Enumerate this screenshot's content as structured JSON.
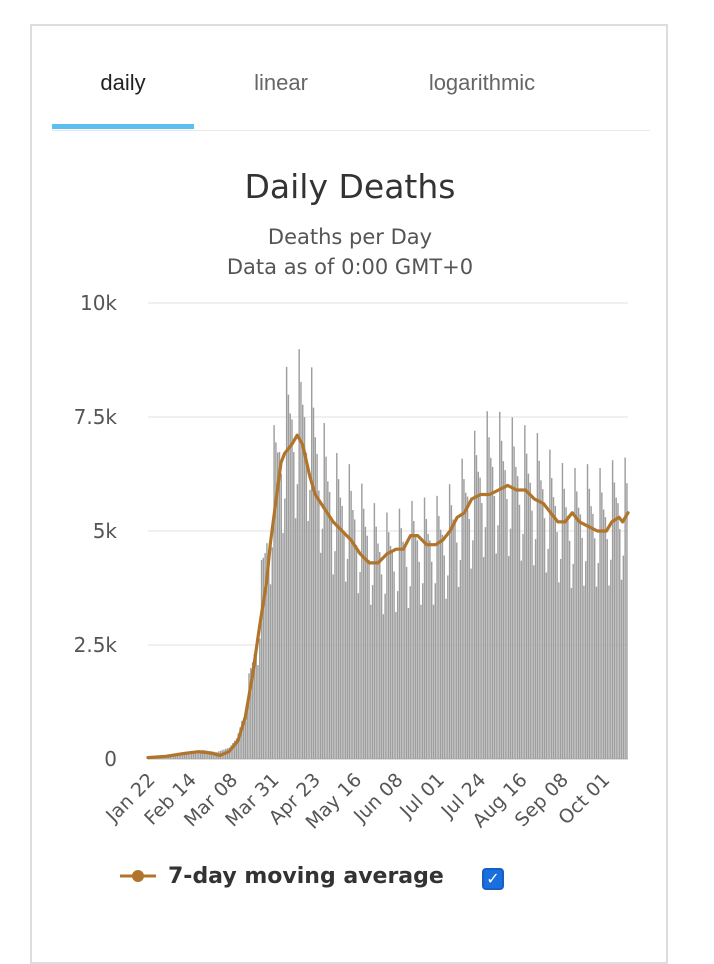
{
  "tabs": [
    {
      "label": "daily",
      "active": true
    },
    {
      "label": "linear",
      "active": false
    },
    {
      "label": "logarithmic",
      "active": false
    }
  ],
  "legend": {
    "label": "7-day moving average",
    "checked": true,
    "check_glyph": "✓"
  },
  "colors": {
    "bars": "#9e9e9e",
    "line": "#b0742a",
    "tab_accent": "#5bc0f0",
    "checkbox": "#1a6fe0"
  },
  "chart_data": {
    "type": "bar",
    "title": "Daily Deaths",
    "subtitle": "Deaths per Day",
    "subtitle2": "Data as of 0:00 GMT+0",
    "xlabel": "",
    "ylabel": "",
    "ylim": [
      0,
      10000
    ],
    "yticks": [
      0,
      2500,
      5000,
      7500,
      10000
    ],
    "ytick_labels": [
      "0",
      "2.5k",
      "5k",
      "7.5k",
      "10k"
    ],
    "grid": true,
    "x_start": "Jan 22",
    "num_days": 268,
    "xtick_labels": [
      {
        "label": "Jan 22",
        "day": 0
      },
      {
        "label": "Feb 14",
        "day": 23
      },
      {
        "label": "Mar 08",
        "day": 46
      },
      {
        "label": "Mar 31",
        "day": 69
      },
      {
        "label": "Apr 23",
        "day": 92
      },
      {
        "label": "May 16",
        "day": 115
      },
      {
        "label": "Jun 08",
        "day": 138
      },
      {
        "label": "Jul 01",
        "day": 161
      },
      {
        "label": "Jul 24",
        "day": 184
      },
      {
        "label": "Aug 16",
        "day": 207
      },
      {
        "label": "Sep 08",
        "day": 230
      },
      {
        "label": "Oct 01",
        "day": 253
      }
    ],
    "bar_profile": [
      [
        0,
        20
      ],
      [
        20,
        100
      ],
      [
        30,
        200
      ],
      [
        38,
        150
      ],
      [
        45,
        250
      ],
      [
        50,
        500
      ],
      [
        55,
        1300
      ],
      [
        60,
        2500
      ],
      [
        65,
        4300
      ],
      [
        70,
        6000
      ],
      [
        74,
        6800
      ],
      [
        80,
        7300
      ],
      [
        86,
        7400
      ],
      [
        90,
        7200
      ],
      [
        95,
        6400
      ],
      [
        100,
        5800
      ],
      [
        105,
        5500
      ],
      [
        110,
        5400
      ],
      [
        120,
        4900
      ],
      [
        130,
        4400
      ],
      [
        140,
        4500
      ],
      [
        150,
        4700
      ],
      [
        160,
        4700
      ],
      [
        170,
        5000
      ],
      [
        180,
        5800
      ],
      [
        190,
        6300
      ],
      [
        200,
        6200
      ],
      [
        210,
        6000
      ],
      [
        220,
        5800
      ],
      [
        225,
        5500
      ],
      [
        235,
        5200
      ],
      [
        245,
        5300
      ],
      [
        255,
        5200
      ],
      [
        262,
        5500
      ],
      [
        267,
        5400
      ]
    ],
    "series": [
      {
        "name": "7-day moving average",
        "type": "line",
        "points": [
          [
            0,
            30
          ],
          [
            10,
            60
          ],
          [
            20,
            120
          ],
          [
            28,
            160
          ],
          [
            35,
            130
          ],
          [
            40,
            80
          ],
          [
            45,
            160
          ],
          [
            50,
            400
          ],
          [
            54,
            900
          ],
          [
            58,
            1800
          ],
          [
            62,
            2900
          ],
          [
            66,
            3900
          ],
          [
            68,
            4700
          ],
          [
            70,
            5300
          ],
          [
            72,
            5900
          ],
          [
            74,
            6500
          ],
          [
            76,
            6700
          ],
          [
            80,
            6900
          ],
          [
            83,
            7100
          ],
          [
            86,
            6900
          ],
          [
            90,
            6200
          ],
          [
            93,
            5800
          ],
          [
            98,
            5500
          ],
          [
            103,
            5200
          ],
          [
            108,
            5000
          ],
          [
            113,
            4800
          ],
          [
            118,
            4500
          ],
          [
            123,
            4300
          ],
          [
            128,
            4300
          ],
          [
            133,
            4500
          ],
          [
            138,
            4600
          ],
          [
            142,
            4600
          ],
          [
            146,
            4900
          ],
          [
            150,
            4900
          ],
          [
            155,
            4700
          ],
          [
            160,
            4700
          ],
          [
            164,
            4800
          ],
          [
            168,
            5000
          ],
          [
            172,
            5300
          ],
          [
            176,
            5400
          ],
          [
            180,
            5700
          ],
          [
            185,
            5800
          ],
          [
            190,
            5800
          ],
          [
            195,
            5900
          ],
          [
            200,
            6000
          ],
          [
            205,
            5900
          ],
          [
            210,
            5900
          ],
          [
            215,
            5700
          ],
          [
            220,
            5600
          ],
          [
            224,
            5400
          ],
          [
            228,
            5200
          ],
          [
            232,
            5200
          ],
          [
            236,
            5400
          ],
          [
            240,
            5200
          ],
          [
            245,
            5100
          ],
          [
            250,
            5000
          ],
          [
            255,
            5000
          ],
          [
            258,
            5200
          ],
          [
            262,
            5300
          ],
          [
            264,
            5200
          ],
          [
            267,
            5400
          ]
        ]
      }
    ]
  }
}
